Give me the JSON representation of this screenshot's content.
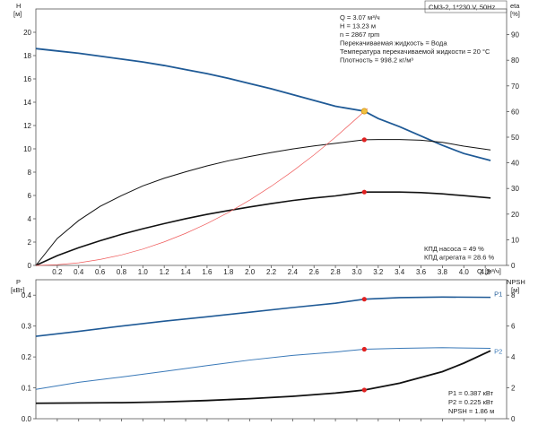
{
  "chart_data": [
    {
      "type": "line",
      "panel": "upper",
      "title": "CM3-2, 1*230 V, 50Hz",
      "ylabel_left": "H",
      "ylabel_left_unit": "[м]",
      "ylabel_right": "eta",
      "ylabel_right_unit": "[%]",
      "xlabel": "Q",
      "xlabel_unit": "[м³/ч]",
      "xlim": [
        0,
        4.4
      ],
      "ylim_left": [
        0,
        22
      ],
      "ylim_right": [
        0,
        100
      ],
      "x_ticks": [
        "0.2",
        "0.4",
        "0.6",
        "0.8",
        "1.0",
        "1.2",
        "1.4",
        "1.6",
        "1.8",
        "2.0",
        "2.2",
        "2.4",
        "2.6",
        "2.8",
        "3.0",
        "3.2",
        "3.4",
        "3.6",
        "3.8",
        "4.0",
        "4.2"
      ],
      "y_ticks_left": [
        "0",
        "2",
        "4",
        "6",
        "8",
        "10",
        "12",
        "14",
        "16",
        "18",
        "20"
      ],
      "y_ticks_right": [
        "0",
        "10",
        "20",
        "30",
        "40",
        "50",
        "60",
        "70",
        "80",
        "90"
      ],
      "grid": true,
      "series": [
        {
          "key": "head",
          "axis": "left",
          "color": "#1f5a96",
          "points": [
            [
              0,
              18.6
            ],
            [
              0.2,
              18.4
            ],
            [
              0.4,
              18.2
            ],
            [
              0.6,
              17.95
            ],
            [
              0.8,
              17.7
            ],
            [
              1.0,
              17.45
            ],
            [
              1.2,
              17.15
            ],
            [
              1.4,
              16.8
            ],
            [
              1.6,
              16.45
            ],
            [
              1.8,
              16.05
            ],
            [
              2.0,
              15.6
            ],
            [
              2.2,
              15.15
            ],
            [
              2.4,
              14.65
            ],
            [
              2.6,
              14.15
            ],
            [
              2.8,
              13.65
            ],
            [
              3.07,
              13.23
            ],
            [
              3.2,
              12.6
            ],
            [
              3.4,
              11.9
            ],
            [
              3.6,
              11.1
            ],
            [
              3.8,
              10.3
            ],
            [
              4.0,
              9.6
            ],
            [
              4.25,
              9.0
            ]
          ]
        },
        {
          "key": "eta-pump",
          "axis": "right",
          "color": "#111111",
          "points": [
            [
              0,
              0
            ],
            [
              0.2,
              10.5
            ],
            [
              0.4,
              17.5
            ],
            [
              0.6,
              23
            ],
            [
              0.8,
              27.2
            ],
            [
              1.0,
              31
            ],
            [
              1.2,
              34
            ],
            [
              1.4,
              36.5
            ],
            [
              1.6,
              38.8
            ],
            [
              1.8,
              40.8
            ],
            [
              2.0,
              42.5
            ],
            [
              2.2,
              44
            ],
            [
              2.4,
              45.4
            ],
            [
              2.6,
              46.6
            ],
            [
              2.8,
              47.6
            ],
            [
              3.07,
              49
            ],
            [
              3.2,
              49.1
            ],
            [
              3.4,
              49.1
            ],
            [
              3.6,
              48.8
            ],
            [
              3.8,
              48
            ],
            [
              4.0,
              46.5
            ],
            [
              4.25,
              45
            ]
          ]
        },
        {
          "key": "eta-unit",
          "axis": "right",
          "color": "#111111",
          "points": [
            [
              0,
              0
            ],
            [
              0.2,
              3.8
            ],
            [
              0.4,
              6.9
            ],
            [
              0.6,
              9.6
            ],
            [
              0.8,
              12.1
            ],
            [
              1.0,
              14.3
            ],
            [
              1.2,
              16.3
            ],
            [
              1.4,
              18.2
            ],
            [
              1.6,
              19.9
            ],
            [
              1.8,
              21.4
            ],
            [
              2.0,
              22.8
            ],
            [
              2.2,
              24.1
            ],
            [
              2.4,
              25.3
            ],
            [
              2.6,
              26.3
            ],
            [
              2.8,
              27.1
            ],
            [
              3.07,
              28.6
            ],
            [
              3.2,
              28.6
            ],
            [
              3.4,
              28.6
            ],
            [
              3.6,
              28.4
            ],
            [
              3.8,
              27.9
            ],
            [
              4.0,
              27.2
            ],
            [
              4.25,
              26.3
            ]
          ]
        },
        {
          "key": "system-curve",
          "axis": "left",
          "color": "#ef5a5a",
          "points": [
            [
              0,
              0
            ],
            [
              0.2,
              0.06
            ],
            [
              0.4,
              0.22
            ],
            [
              0.6,
              0.51
            ],
            [
              0.8,
              0.9
            ],
            [
              1.0,
              1.4
            ],
            [
              1.2,
              2.02
            ],
            [
              1.4,
              2.75
            ],
            [
              1.6,
              3.59
            ],
            [
              1.8,
              4.54
            ],
            [
              2.0,
              5.61
            ],
            [
              2.2,
              6.79
            ],
            [
              2.4,
              8.08
            ],
            [
              2.6,
              9.48
            ],
            [
              2.8,
              11.0
            ],
            [
              3.0,
              12.63
            ],
            [
              3.1,
              13.45
            ]
          ]
        }
      ],
      "markers": [
        {
          "series": "head",
          "x": 3.07,
          "y": 13.23,
          "axis": "left",
          "color": "#f0c040"
        },
        {
          "series": "eta-pump",
          "x": 3.07,
          "y": 49,
          "axis": "right",
          "color": "#e02020"
        },
        {
          "series": "eta-unit",
          "x": 3.07,
          "y": 28.6,
          "axis": "right",
          "color": "#e02020"
        }
      ],
      "annotations_top": [
        "Q = 3.07 м³/ч",
        "H = 13.23 м",
        "n = 2867 rpm",
        "Перекачиваемая жидкость = Вода",
        "Температура перекачиваемой жидкости = 20 °C",
        "Плотность = 998.2 кг/м³"
      ],
      "annotations_bottom": [
        "КПД насоса = 49 %",
        "КПД агрегата = 28.6 %"
      ]
    },
    {
      "type": "line",
      "panel": "lower",
      "ylabel_left": "P",
      "ylabel_left_unit": "[кВт]",
      "ylabel_right": "NPSH",
      "ylabel_right_unit": "[м]",
      "xlim": [
        0,
        4.4
      ],
      "ylim_left": [
        0,
        0.45
      ],
      "ylim_right": [
        0,
        9
      ],
      "y_ticks_left": [
        "0.0",
        "0.1",
        "0.2",
        "0.3",
        "0.4"
      ],
      "y_ticks_right": [
        "0",
        "2",
        "4",
        "6",
        "8"
      ],
      "grid": true,
      "series": [
        {
          "key": "P1",
          "name": "P1",
          "axis": "left",
          "color": "#1f5a96",
          "points": [
            [
              0,
              0.267
            ],
            [
              0.4,
              0.283
            ],
            [
              0.8,
              0.3
            ],
            [
              1.2,
              0.316
            ],
            [
              1.6,
              0.33
            ],
            [
              2.0,
              0.345
            ],
            [
              2.4,
              0.36
            ],
            [
              2.8,
              0.374
            ],
            [
              3.07,
              0.387
            ],
            [
              3.4,
              0.392
            ],
            [
              3.8,
              0.394
            ],
            [
              4.25,
              0.393
            ]
          ]
        },
        {
          "key": "P2",
          "name": "P2",
          "axis": "left",
          "color": "#3a79b8",
          "points": [
            [
              0,
              0.095
            ],
            [
              0.4,
              0.118
            ],
            [
              0.8,
              0.135
            ],
            [
              1.2,
              0.153
            ],
            [
              1.6,
              0.172
            ],
            [
              2.0,
              0.19
            ],
            [
              2.4,
              0.205
            ],
            [
              2.8,
              0.216
            ],
            [
              3.07,
              0.225
            ],
            [
              3.4,
              0.228
            ],
            [
              3.8,
              0.23
            ],
            [
              4.25,
              0.228
            ]
          ]
        },
        {
          "key": "NPSH",
          "axis": "right",
          "color": "#111111",
          "points": [
            [
              0,
              1.0
            ],
            [
              0.8,
              1.04
            ],
            [
              1.2,
              1.09
            ],
            [
              1.6,
              1.18
            ],
            [
              2.0,
              1.3
            ],
            [
              2.4,
              1.45
            ],
            [
              2.8,
              1.66
            ],
            [
              3.07,
              1.86
            ],
            [
              3.4,
              2.3
            ],
            [
              3.8,
              3.05
            ],
            [
              4.0,
              3.6
            ],
            [
              4.25,
              4.4
            ]
          ]
        }
      ],
      "markers": [
        {
          "series": "P1",
          "x": 3.07,
          "y": 0.387,
          "axis": "left",
          "color": "#e02020"
        },
        {
          "series": "P2",
          "x": 3.07,
          "y": 0.225,
          "axis": "left",
          "color": "#e02020"
        },
        {
          "series": "NPSH",
          "x": 3.07,
          "y": 1.86,
          "axis": "right",
          "color": "#e02020"
        }
      ],
      "annotations_bottom": [
        "P1 = 0.387 кВт",
        "P2 = 0.225 кВт",
        "NPSH = 1.86 м"
      ]
    }
  ]
}
